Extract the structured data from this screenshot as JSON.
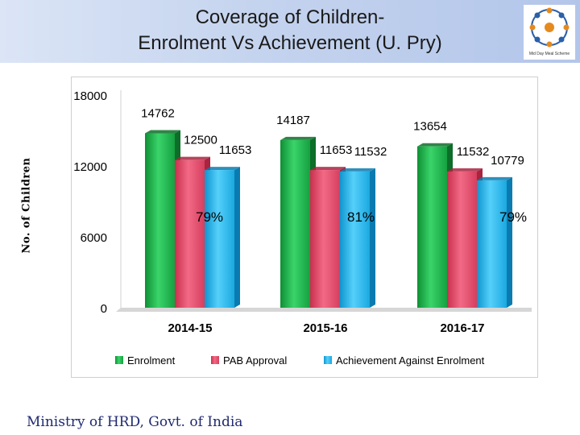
{
  "header": {
    "title_line1": "Coverage of Children-",
    "title_line2": "Enrolment Vs Achievement (U. Pry)"
  },
  "logo": {
    "name": "mid-day-meal-logo",
    "caption": "Mid Day Meal Scheme"
  },
  "footer": {
    "text": "Ministry of HRD, Govt. of India"
  },
  "chart_data": {
    "type": "bar",
    "ylabel": "No. of Children",
    "ylim": [
      0,
      18000
    ],
    "yticks": [
      0,
      6000,
      12000,
      18000
    ],
    "categories": [
      "2014-15",
      "2015-16",
      "2016-17"
    ],
    "series": [
      {
        "name": "Enrolment",
        "values": [
          14762,
          14187,
          13654
        ],
        "color": "#1fb84d"
      },
      {
        "name": "PAB Approval",
        "values": [
          12500,
          11653,
          11532
        ],
        "color": "#ec4e6e"
      },
      {
        "name": "Achievement Against Enrolment",
        "values": [
          11653,
          11532,
          10779
        ],
        "color": "#24b6ee"
      }
    ],
    "annotations": [
      "79%",
      "81%",
      "79%"
    ],
    "legend_position": "bottom",
    "grid": false
  }
}
